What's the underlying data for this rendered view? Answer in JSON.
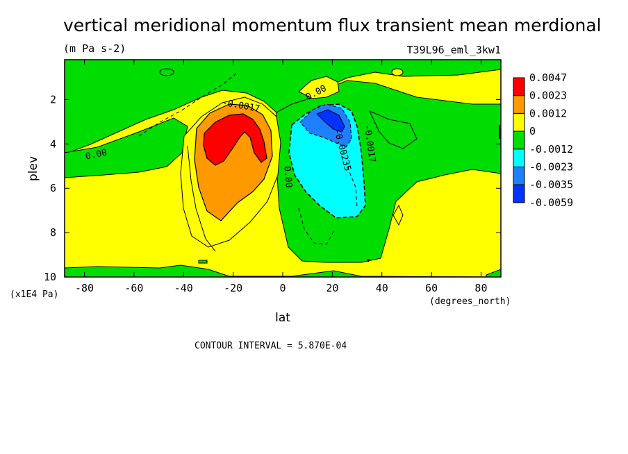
{
  "chart_data": {
    "type": "heatmap",
    "title": "vertical meridional momentum flux transient mean merdional",
    "units": "(m Pa s-2)",
    "dataset": "T39L96_eml_3kw1",
    "xlabel": "lat",
    "x_units": "(degrees_north)",
    "ylabel": "plev",
    "y_units": "(x1E4 Pa)",
    "xlim": [
      -88,
      88
    ],
    "ylim": [
      10,
      0.2
    ],
    "x_ticks": [
      -80,
      -60,
      -40,
      -20,
      0,
      20,
      40,
      60,
      80
    ],
    "x_tick_labels": [
      "-80",
      "-60",
      "-40",
      "-20",
      "0",
      "20",
      "40",
      "60",
      "80"
    ],
    "y_ticks": [
      2,
      4,
      6,
      8,
      10
    ],
    "y_tick_labels": [
      "2",
      "4",
      "6",
      "8",
      "10"
    ],
    "contour_interval": "CONTOUR INTERVAL = 5.870E-04",
    "legend": {
      "labels": [
        "0.0047",
        "0.0023",
        "0.0012",
        "0",
        "-0.0012",
        "-0.0023",
        "-0.0035",
        "-0.0059"
      ],
      "colors": [
        "#ff0000",
        "#ff9900",
        "#ffff00",
        "#00dd00",
        "#00ffff",
        "#1e7fff",
        "#0033ff"
      ]
    },
    "contour_labels": [
      {
        "text": "0.00",
        "lat": -75,
        "plev": 4.6,
        "angle": -12
      },
      {
        "text": "-0.0017",
        "lat": -17,
        "plev": 2.4,
        "angle": 10
      },
      {
        "text": "0.00",
        "lat": 1,
        "plev": 5.5,
        "angle": 85
      },
      {
        "text": "0.00",
        "lat": 14,
        "plev": 1.8,
        "angle": -28
      },
      {
        "text": "-0.00235",
        "lat": 23,
        "plev": 4.3,
        "angle": 75
      },
      {
        "text": "-0.0017",
        "lat": 34,
        "plev": 4.0,
        "angle": 82
      }
    ],
    "features": [
      {
        "name": "positive-flux-maximum",
        "lat": -18,
        "plev": 3.6,
        "value": 0.0047
      },
      {
        "name": "negative-flux-minimum",
        "lat": 18,
        "plev": 3.0,
        "value": -0.0059
      }
    ]
  }
}
